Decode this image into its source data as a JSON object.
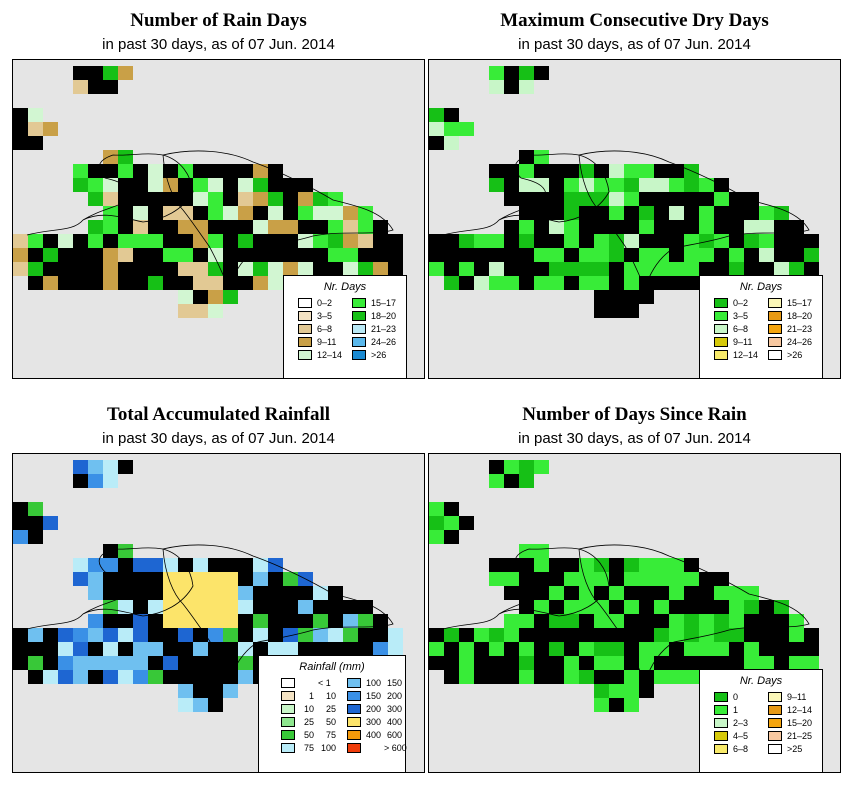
{
  "panels": [
    {
      "id": "rain-days",
      "title": "Number of Rain Days",
      "subtitle": "in past 30 days, as of  07 Jun. 2014",
      "legend_title": "Nr. Days",
      "legend": [
        {
          "label": "0–2",
          "color": "#ffffff"
        },
        {
          "label": "3–5",
          "color": "#f3e2c3"
        },
        {
          "label": "6–8",
          "color": "#e2c994"
        },
        {
          "label": "9–11",
          "color": "#c9a047"
        },
        {
          "label": "12–14",
          "color": "#d2f6d2"
        },
        {
          "label": "15–17",
          "color": "#38ec38"
        },
        {
          "label": "18–20",
          "color": "#16c016"
        },
        {
          "label": "21–23",
          "color": "#b9e9f6"
        },
        {
          "label": "24–26",
          "color": "#5ab8ec"
        },
        {
          "label": ">26",
          "color": "#1a8ad2"
        }
      ]
    },
    {
      "id": "dry-days",
      "title": "Maximum Consecutive Dry Days",
      "subtitle": "in past 30 days, as of  07 Jun. 2014",
      "legend_title": "Nr. Days",
      "legend": [
        {
          "label": "0–2",
          "color": "#16c016"
        },
        {
          "label": "3–5",
          "color": "#38ec38"
        },
        {
          "label": "6–8",
          "color": "#c8f6c8"
        },
        {
          "label": "9–11",
          "color": "#d6c90a"
        },
        {
          "label": "12–14",
          "color": "#f8ea6a"
        },
        {
          "label": "15–17",
          "color": "#fbf7b8"
        },
        {
          "label": "18–20",
          "color": "#e89a14"
        },
        {
          "label": "21–23",
          "color": "#f5a50e"
        },
        {
          "label": "24–26",
          "color": "#f8c8a0"
        },
        {
          "label": ">26",
          "color": "#ffffff"
        }
      ]
    },
    {
      "id": "rainfall",
      "title": "Total Accumulated Rainfall",
      "subtitle": "in past 30 days, as of  07 Jun. 2014",
      "legend_title": "Rainfall (mm)",
      "legend": [
        {
          "lo": "",
          "hi": "< 1",
          "color": "#ffffff"
        },
        {
          "lo": "1",
          "hi": "10",
          "color": "#f3e2c3"
        },
        {
          "lo": "10",
          "hi": "25",
          "color": "#c8f6c8"
        },
        {
          "lo": "25",
          "hi": "50",
          "color": "#8ee68e"
        },
        {
          "lo": "50",
          "hi": "75",
          "color": "#38c838"
        },
        {
          "lo": "75",
          "hi": "100",
          "color": "#b9ecf8"
        },
        {
          "lo": "100",
          "hi": "150",
          "color": "#6fc0f0"
        },
        {
          "lo": "150",
          "hi": "200",
          "color": "#3a90e6"
        },
        {
          "lo": "200",
          "hi": "300",
          "color": "#1e66d2"
        },
        {
          "lo": "300",
          "hi": "400",
          "color": "#fce46a"
        },
        {
          "lo": "400",
          "hi": "600",
          "color": "#f59a0a"
        },
        {
          "lo": "",
          "hi": "> 600",
          "color": "#f03c0a"
        }
      ]
    },
    {
      "id": "since-rain",
      "title": "Number of Days Since Rain",
      "subtitle": "in past 30 days, as of  07 Jun. 2014",
      "legend_title": "Nr. Days",
      "legend": [
        {
          "label": "0",
          "color": "#16c016"
        },
        {
          "label": "1",
          "color": "#38ec38"
        },
        {
          "label": "2–3",
          "color": "#c8f6c8"
        },
        {
          "label": "4–5",
          "color": "#d6c90a"
        },
        {
          "label": "6–8",
          "color": "#f8ea6a"
        },
        {
          "label": "9–11",
          "color": "#fbf7b8"
        },
        {
          "label": "12–14",
          "color": "#e89a14"
        },
        {
          "label": "15–20",
          "color": "#f5a50e"
        },
        {
          "label": "21–25",
          "color": "#f8c8a0"
        },
        {
          "label": ">25",
          "color": "#ffffff"
        }
      ]
    }
  ]
}
